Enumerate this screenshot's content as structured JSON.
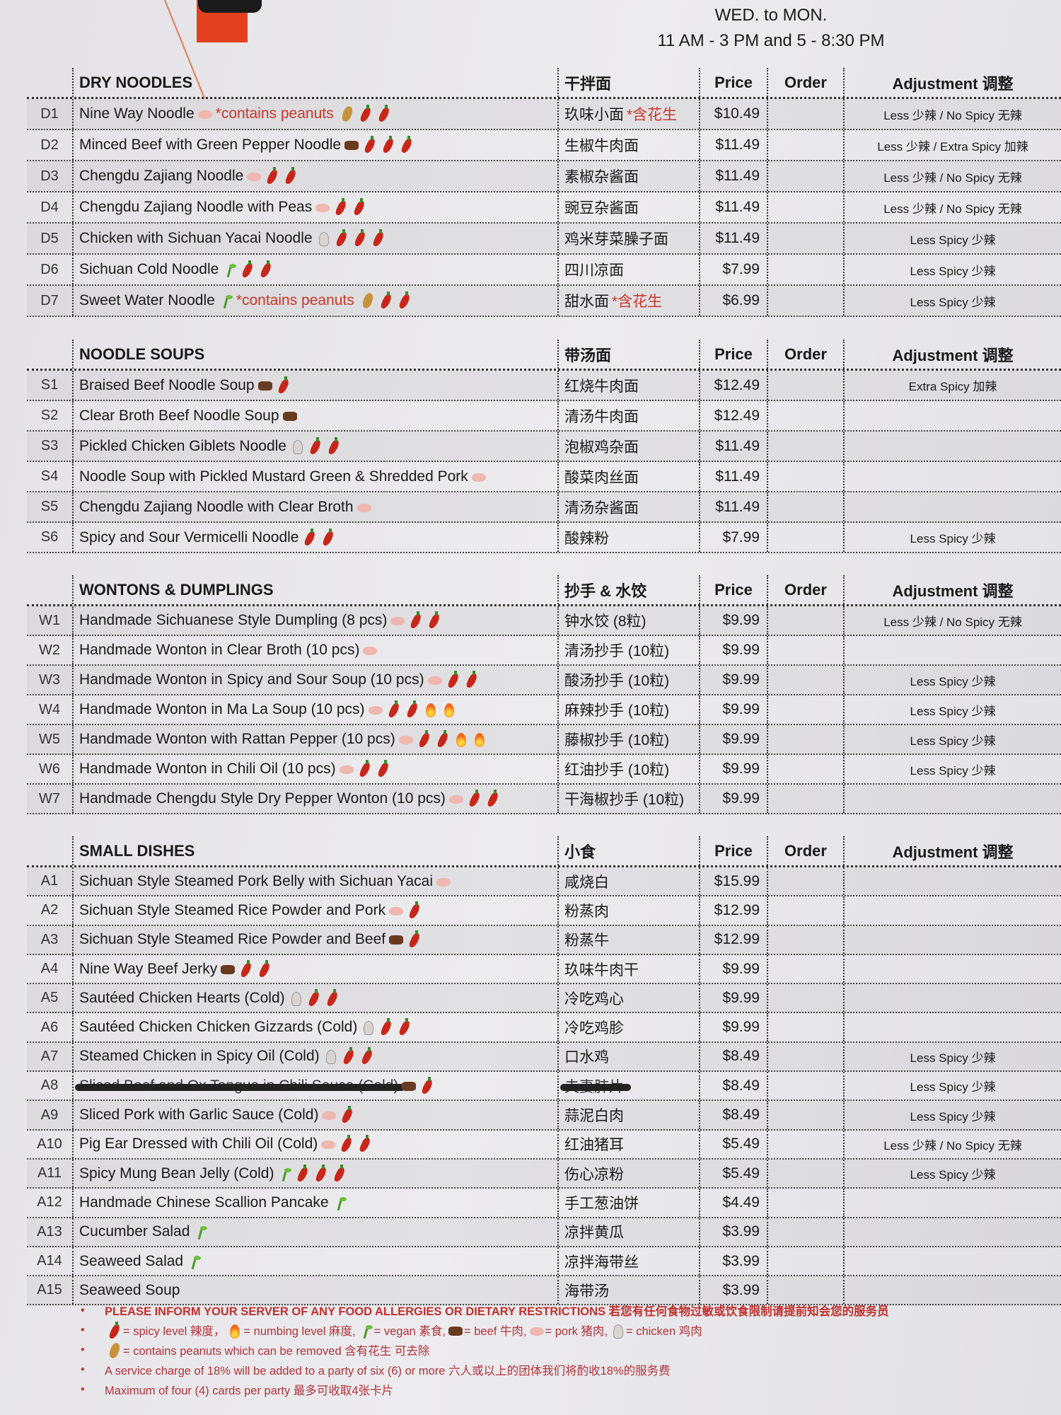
{
  "header": {
    "days": "WED. to MON.",
    "hours": "11 AM - 3 PM and 5 - 8:30 PM"
  },
  "columns": {
    "price": "Price",
    "order": "Order",
    "adjustment": "Adjustment 调整"
  },
  "sections": [
    {
      "title": "DRY NOODLES",
      "title_cn": "干拌面",
      "items": [
        {
          "code": "D1",
          "name": "Nine Way Noodle",
          "icons": [
            "pork"
          ],
          "note": "*contains peanuts",
          "icons_after": [
            "peanut",
            "chili",
            "chili"
          ],
          "cn": "玖味小面",
          "cn_note": "*含花生",
          "price": "$10.49",
          "adj": "Less 少辣 / No Spicy 无辣"
        },
        {
          "code": "D2",
          "name": "Minced Beef with Green Pepper Noodle",
          "icons": [
            "beef",
            "chili",
            "chili",
            "chili"
          ],
          "cn": "生椒牛肉面",
          "price": "$11.49",
          "adj": "Less 少辣 / Extra Spicy 加辣"
        },
        {
          "code": "D3",
          "name": "Chengdu Zajiang Noodle",
          "icons": [
            "pork",
            "chili",
            "chili"
          ],
          "cn": "素椒杂酱面",
          "price": "$11.49",
          "adj": "Less 少辣 / No Spicy 无辣"
        },
        {
          "code": "D4",
          "name": "Chengdu Zajiang Noodle with Peas",
          "icons": [
            "pork",
            "chili",
            "chili"
          ],
          "cn": "豌豆杂酱面",
          "price": "$11.49",
          "adj": "Less 少辣 / No Spicy 无辣"
        },
        {
          "code": "D5",
          "name": "Chicken with Sichuan Yacai Noodle",
          "icons": [
            "chicken",
            "chili",
            "chili",
            "chili"
          ],
          "cn": "鸡米芽菜臊子面",
          "price": "$11.49",
          "adj": "Less Spicy 少辣"
        },
        {
          "code": "D6",
          "name": "Sichuan Cold Noodle",
          "icons": [
            "vegan",
            "chili",
            "chili"
          ],
          "cn": "四川凉面",
          "price": "$7.99",
          "adj": "Less Spicy 少辣"
        },
        {
          "code": "D7",
          "name": "Sweet Water Noodle",
          "icons": [
            "vegan"
          ],
          "note": "*contains peanuts",
          "icons_after": [
            "peanut",
            "chili",
            "chili"
          ],
          "cn": "甜水面",
          "cn_note": "*含花生",
          "price": "$6.99",
          "adj": "Less Spicy 少辣"
        }
      ]
    },
    {
      "title": "NOODLE SOUPS",
      "title_cn": "带汤面",
      "items": [
        {
          "code": "S1",
          "name": "Braised Beef Noodle Soup",
          "icons": [
            "beef",
            "chili"
          ],
          "cn": "红烧牛肉面",
          "price": "$12.49",
          "adj": "Extra Spicy 加辣"
        },
        {
          "code": "S2",
          "name": "Clear Broth Beef Noodle Soup",
          "icons": [
            "beef"
          ],
          "cn": "清汤牛肉面",
          "price": "$12.49",
          "adj": ""
        },
        {
          "code": "S3",
          "name": "Pickled Chicken Giblets Noodle",
          "icons": [
            "chicken",
            "chili",
            "chili"
          ],
          "cn": "泡椒鸡杂面",
          "price": "$11.49",
          "adj": ""
        },
        {
          "code": "S4",
          "name": "Noodle Soup with Pickled Mustard Green & Shredded Pork",
          "icons": [
            "pork"
          ],
          "cn": "酸菜肉丝面",
          "price": "$11.49",
          "adj": ""
        },
        {
          "code": "S5",
          "name": "Chengdu Zajiang Noodle with Clear Broth",
          "icons": [
            "pork"
          ],
          "cn": "清汤杂酱面",
          "price": "$11.49",
          "adj": ""
        },
        {
          "code": "S6",
          "name": "Spicy and Sour Vermicelli Noodle",
          "icons": [
            "chili",
            "chili"
          ],
          "cn": "酸辣粉",
          "price": "$7.99",
          "adj": "Less Spicy 少辣"
        }
      ]
    },
    {
      "title": "WONTONS & DUMPLINGS",
      "title_cn": "抄手 & 水饺",
      "items": [
        {
          "code": "W1",
          "name": "Handmade Sichuanese Style Dumpling (8 pcs)",
          "icons": [
            "pork",
            "chili",
            "chili"
          ],
          "cn": "钟水饺 (8粒)",
          "price": "$9.99",
          "adj": "Less 少辣 / No Spicy 无辣"
        },
        {
          "code": "W2",
          "name": "Handmade Wonton in Clear Broth (10 pcs)",
          "icons": [
            "pork"
          ],
          "cn": "清汤抄手 (10粒)",
          "price": "$9.99",
          "adj": ""
        },
        {
          "code": "W3",
          "name": "Handmade Wonton in Spicy and Sour Soup (10 pcs)",
          "icons": [
            "pork",
            "chili",
            "chili"
          ],
          "cn": "酸汤抄手 (10粒)",
          "price": "$9.99",
          "adj": "Less Spicy 少辣"
        },
        {
          "code": "W4",
          "name": "Handmade Wonton in Ma La Soup (10 pcs)",
          "icons": [
            "pork",
            "chili",
            "chili",
            "flame",
            "flame"
          ],
          "cn": "麻辣抄手 (10粒)",
          "price": "$9.99",
          "adj": "Less Spicy 少辣"
        },
        {
          "code": "W5",
          "name": "Handmade Wonton with Rattan Pepper (10 pcs)",
          "icons": [
            "pork",
            "chili",
            "chili",
            "flame",
            "flame"
          ],
          "cn": "藤椒抄手 (10粒)",
          "price": "$9.99",
          "adj": "Less Spicy 少辣"
        },
        {
          "code": "W6",
          "name": "Handmade Wonton in Chili Oil (10 pcs)",
          "icons": [
            "pork",
            "chili",
            "chili"
          ],
          "cn": "红油抄手 (10粒)",
          "price": "$9.99",
          "adj": "Less Spicy 少辣"
        },
        {
          "code": "W7",
          "name": "Handmade Chengdu Style Dry Pepper Wonton (10 pcs)",
          "icons": [
            "pork",
            "chili",
            "chili"
          ],
          "cn": "干海椒抄手 (10粒)",
          "price": "$9.99",
          "adj": ""
        }
      ]
    },
    {
      "title": "SMALL DISHES",
      "title_cn": "小食",
      "items": [
        {
          "code": "A1",
          "name": "Sichuan Style Steamed Pork Belly with Sichuan Yacai",
          "icons": [
            "pork"
          ],
          "cn": "咸烧白",
          "price": "$15.99",
          "adj": ""
        },
        {
          "code": "A2",
          "name": "Sichuan Style Steamed Rice Powder and Pork",
          "icons": [
            "pork",
            "chili"
          ],
          "cn": "粉蒸肉",
          "price": "$12.99",
          "adj": ""
        },
        {
          "code": "A3",
          "name": "Sichuan Style Steamed Rice Powder and Beef",
          "icons": [
            "beef",
            "chili"
          ],
          "cn": "粉蒸牛",
          "price": "$12.99",
          "adj": ""
        },
        {
          "code": "A4",
          "name": "Nine Way Beef Jerky",
          "icons": [
            "beef",
            "chili",
            "chili"
          ],
          "cn": "玖味牛肉干",
          "price": "$9.99",
          "adj": ""
        },
        {
          "code": "A5",
          "name": "Sautéed Chicken Hearts (Cold)",
          "icons": [
            "chicken",
            "chili",
            "chili"
          ],
          "cn": "冷吃鸡心",
          "price": "$9.99",
          "adj": ""
        },
        {
          "code": "A6",
          "name": "Sautéed Chicken Chicken Gizzards (Cold)",
          "icons": [
            "chicken",
            "chili",
            "chili"
          ],
          "cn": "冷吃鸡胗",
          "price": "$9.99",
          "adj": ""
        },
        {
          "code": "A7",
          "name": "Steamed Chicken in Spicy Oil (Cold)",
          "icons": [
            "chicken",
            "chili",
            "chili"
          ],
          "cn": "口水鸡",
          "price": "$8.49",
          "adj": "Less Spicy 少辣"
        },
        {
          "code": "A8",
          "name": "Sliced Beef and Ox Tongue in Chili Sauce (Cold)",
          "icons": [
            "beef",
            "chili"
          ],
          "struck": true,
          "cn": "夫妻肺片",
          "price": "$8.49",
          "adj": "Less Spicy 少辣"
        },
        {
          "code": "A9",
          "name": "Sliced Pork with Garlic Sauce (Cold)",
          "icons": [
            "pork",
            "chili"
          ],
          "cn": "蒜泥白肉",
          "price": "$8.49",
          "adj": "Less Spicy 少辣"
        },
        {
          "code": "A10",
          "name": "Pig Ear Dressed with Chili Oil (Cold)",
          "icons": [
            "pork",
            "chili",
            "chili"
          ],
          "cn": "红油猪耳",
          "price": "$5.49",
          "adj": "Less 少辣 / No Spicy 无辣"
        },
        {
          "code": "A11",
          "name": "Spicy Mung Bean Jelly (Cold)",
          "icons": [
            "vegan",
            "chili",
            "chili",
            "chili"
          ],
          "cn": "伤心凉粉",
          "price": "$5.49",
          "adj": "Less Spicy 少辣"
        },
        {
          "code": "A12",
          "name": "Handmade Chinese Scallion Pancake",
          "icons": [
            "vegan"
          ],
          "cn": "手工葱油饼",
          "price": "$4.49",
          "adj": ""
        },
        {
          "code": "A13",
          "name": "Cucumber Salad",
          "icons": [
            "vegan"
          ],
          "cn": "凉拌黄瓜",
          "price": "$3.99",
          "adj": ""
        },
        {
          "code": "A14",
          "name": "Seaweed Salad",
          "icons": [
            "vegan"
          ],
          "cn": "凉拌海带丝",
          "price": "$3.99",
          "adj": ""
        },
        {
          "code": "A15",
          "name": "Seaweed Soup",
          "icons": [],
          "cn": "海带汤",
          "price": "$3.99",
          "adj": ""
        }
      ]
    }
  ],
  "footer": {
    "allergy": "PLEASE INFORM YOUR SERVER OF ANY FOOD ALLERGIES OR DIETARY RESTRICTIONS 若您有任何食物过敏或饮食限制请提前知会您的服务员",
    "legend": [
      {
        "icon": "chili",
        "text": "= spicy level 辣度，"
      },
      {
        "icon": "flame",
        "text": "= numbing level 麻度,"
      },
      {
        "icon": "vegan",
        "text": "= vegan 素食,"
      },
      {
        "icon": "beef",
        "text": "= beef 牛肉,"
      },
      {
        "icon": "pork",
        "text": "= pork 猪肉,"
      },
      {
        "icon": "chicken",
        "text": "= chicken 鸡肉"
      }
    ],
    "peanut_note": "= contains peanuts which can be removed 含有花生 可去除",
    "service_charge": "A service charge of 18% will be added to a party of six (6) or more 六人或以上的团体我们将酌收18%的服务费",
    "cards": "Maximum of four (4) cards per party 最多可收取4张卡片"
  },
  "colors": {
    "note_red": "#c8372d",
    "footer_red": "#b0323a",
    "logo_red": "#e2401f"
  }
}
